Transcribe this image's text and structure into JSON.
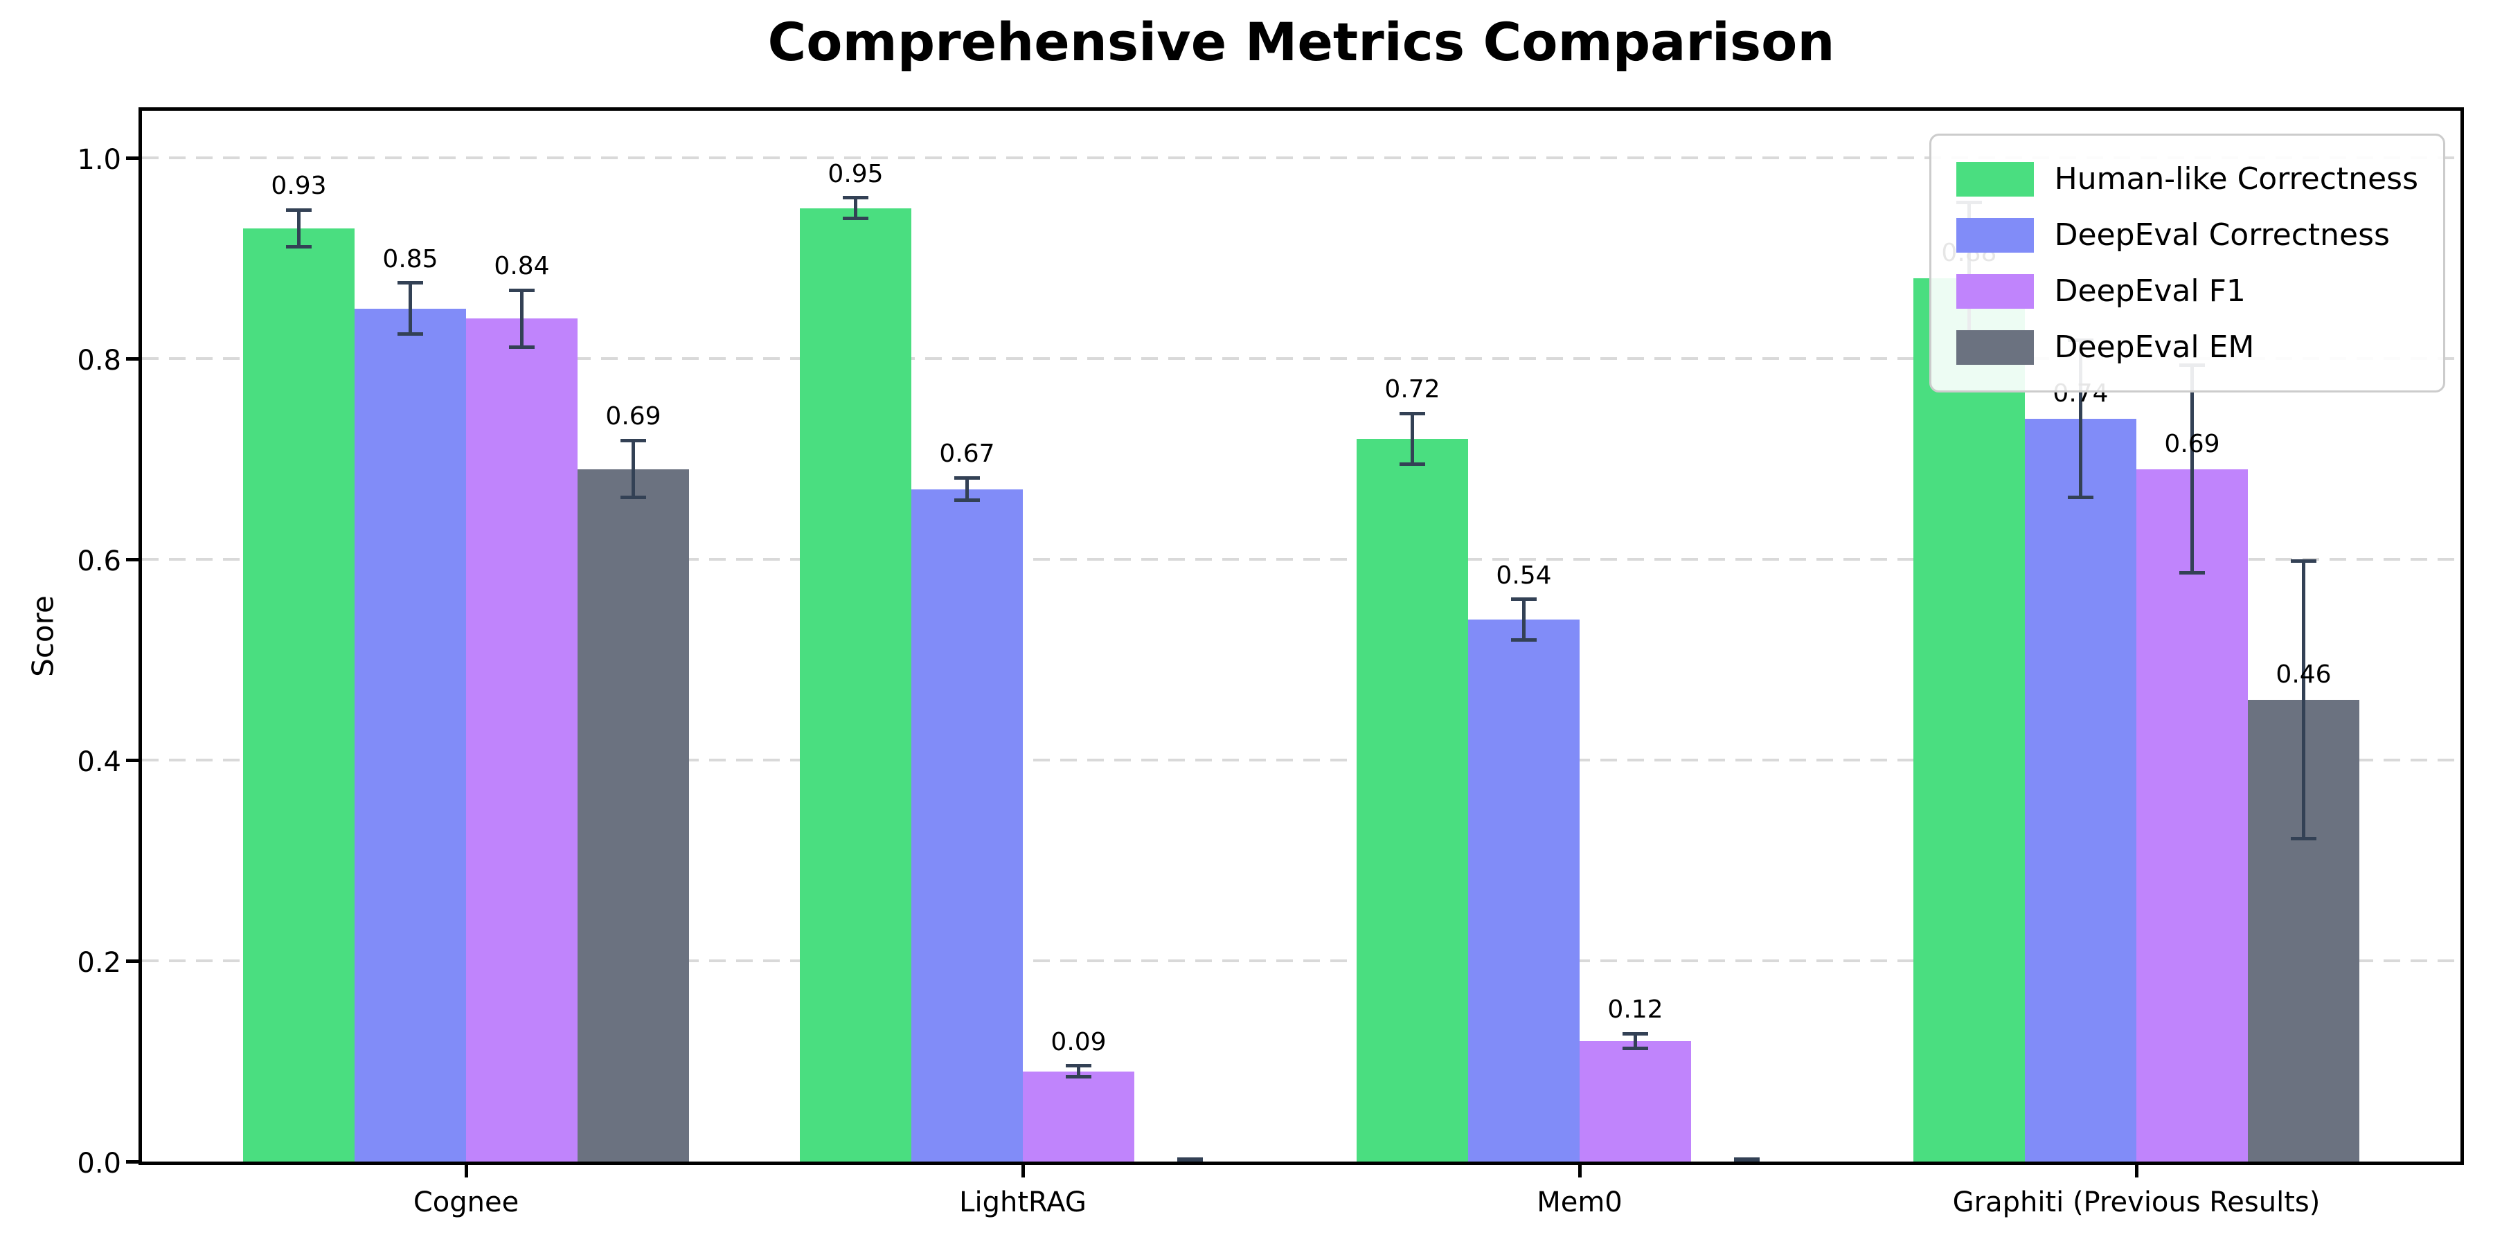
{
  "title": "Comprehensive Metrics Comparison",
  "axis": {
    "ylabel": "Score",
    "ytick_labels": [
      "0.0",
      "0.2",
      "0.4",
      "0.6",
      "0.8",
      "1.0"
    ]
  },
  "chart_data": {
    "type": "bar",
    "title": "Comprehensive Metrics Comparison",
    "xlabel": "",
    "ylabel": "Score",
    "categories": [
      "Cognee",
      "LightRAG",
      "Mem0",
      "Graphiti (Previous Results)"
    ],
    "series": [
      {
        "name": "Human-like Correctness",
        "color": "#4ade80",
        "values": [
          0.93,
          0.95,
          0.72,
          0.88
        ],
        "errors": [
          0.02,
          0.012,
          0.027,
          0.077
        ],
        "labels": [
          "0.93",
          "0.95",
          "0.72",
          "0.88"
        ]
      },
      {
        "name": "DeepEval Correctness",
        "color": "#818cf8",
        "values": [
          0.85,
          0.67,
          0.54,
          0.74
        ],
        "errors": [
          0.027,
          0.013,
          0.022,
          0.08
        ],
        "labels": [
          "0.85",
          "0.67",
          "0.54",
          "0.74"
        ]
      },
      {
        "name": "DeepEval F1",
        "color": "#c084fc",
        "values": [
          0.84,
          0.09,
          0.12,
          0.69
        ],
        "errors": [
          0.03,
          0.007,
          0.009,
          0.105
        ],
        "labels": [
          "0.84",
          "0.09",
          "0.12",
          "0.69"
        ]
      },
      {
        "name": "DeepEval EM",
        "color": "#6b7280",
        "values": [
          0.69,
          0.0,
          0.0,
          0.46
        ],
        "errors": [
          0.03,
          0.004,
          0.004,
          0.14
        ],
        "labels": [
          "0.69",
          "",
          "",
          "0.46"
        ]
      }
    ],
    "yticks": [
      0.0,
      0.2,
      0.4,
      0.6,
      0.8,
      1.0
    ],
    "ylim": [
      0.0,
      1.054
    ],
    "grid": "horizontal-dashed",
    "legend_position": "upper-right",
    "error_bar_color": "#334155"
  }
}
